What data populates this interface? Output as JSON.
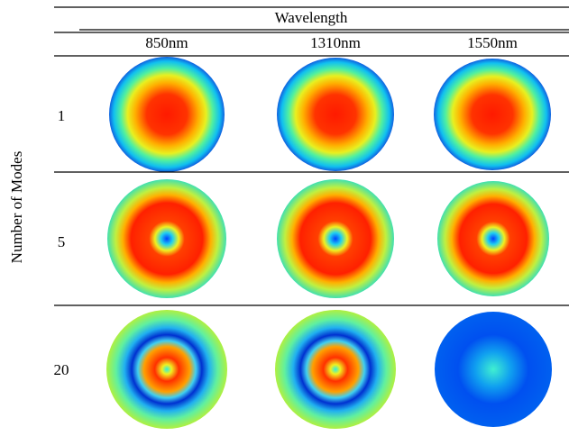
{
  "header": {
    "title": "Wavelength",
    "columns": [
      "850nm",
      "1310nm",
      "1550nm"
    ]
  },
  "row_axis_label": "Number of Modes",
  "rows": [
    "1",
    "5",
    "20"
  ]
}
